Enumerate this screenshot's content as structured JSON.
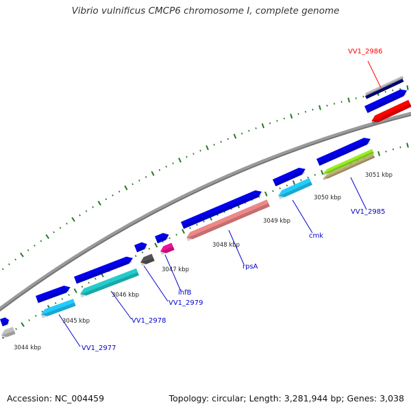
{
  "title": "Vibrio vulnificus CMCP6 chromosome I, complete genome",
  "accession_text": "Accession: NC_004459",
  "summary_text": "Topology: circular; Length: 3,281,944 bp; Genes: 3,038",
  "colors": {
    "backbone": "#808080",
    "tick": "#1f7a1f",
    "gene_label": "#0000cc",
    "highlight_label": "#ff0000"
  },
  "scale_labels": [
    "3044 kbp",
    "3045 kbp",
    "3046 kbp",
    "3047 kbp",
    "3048 kbp",
    "3049 kbp",
    "3050 kbp",
    "3051 kbp"
  ],
  "gene_labels": [
    {
      "name": "VV1_2977",
      "color": "#0000cc"
    },
    {
      "name": "VV1_2978",
      "color": "#0000cc"
    },
    {
      "name": "VV1_2979",
      "color": "#0000cc"
    },
    {
      "name": "ihfB",
      "color": "#0000cc"
    },
    {
      "name": "rpsA",
      "color": "#0000cc"
    },
    {
      "name": "cmk",
      "color": "#0000cc"
    },
    {
      "name": "VV1_2985",
      "color": "#0000cc"
    },
    {
      "name": "VV1_2986",
      "color": "#ff0000"
    }
  ],
  "feature_colors": {
    "cds_forward": "#0000ee",
    "cds_light_blue": "#22ccff",
    "cds_teal": "#22cccc",
    "cds_dark_gray": "#555555",
    "cds_magenta": "#ee1199",
    "cds_salmon": "#ee8888",
    "cds_lime": "#99ee22",
    "cds_khaki": "#bbaa77",
    "cds_red": "#ff0000",
    "cds_navy": "#000077",
    "cds_silver": "#c0c0c0"
  }
}
